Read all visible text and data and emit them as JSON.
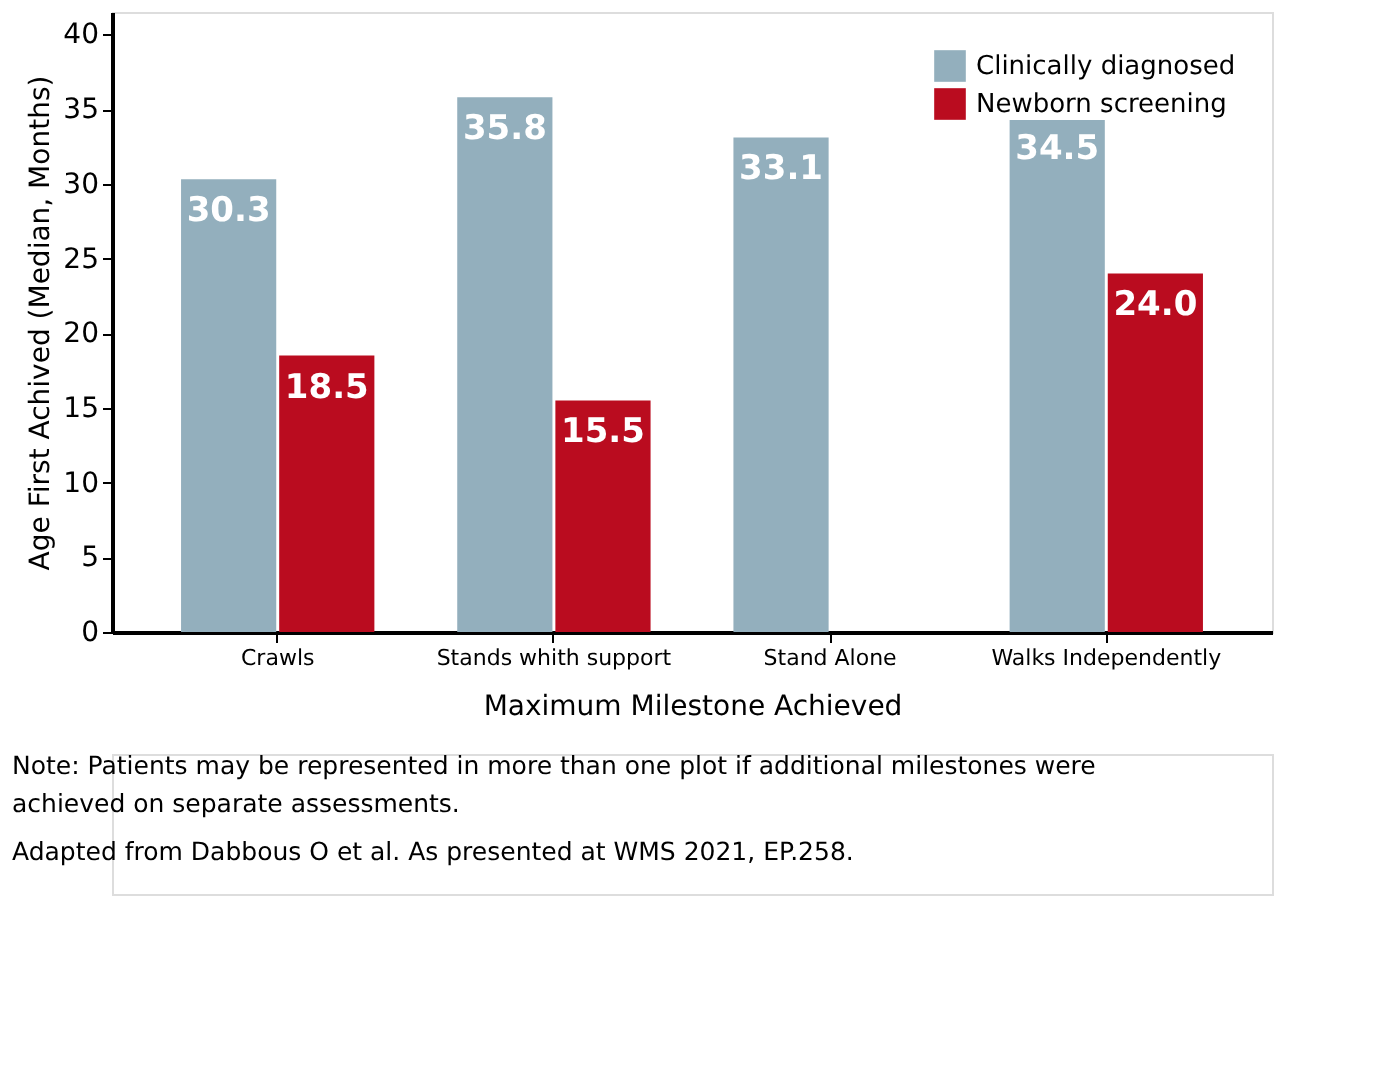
{
  "chart_data": {
    "type": "bar",
    "xlabel": "Maximum Milestone Achieved",
    "ylabel": "Age First Achived (Median, Months)",
    "categories": [
      "Crawls",
      "Stands whith support",
      "Stand Alone",
      "Walks Independently"
    ],
    "series": [
      {
        "name": "Clinically diagnosed",
        "color": "#93afbd",
        "values": [
          30.3,
          35.8,
          33.1,
          34.5
        ],
        "value_labels": [
          "30.3",
          "35.8",
          "33.1",
          "34.5"
        ]
      },
      {
        "name": "Newborn screening",
        "color": "#ba0c1f",
        "values": [
          18.5,
          15.5,
          null,
          24.0
        ],
        "value_labels": [
          "18.5",
          "15.5",
          null,
          "24.0"
        ]
      }
    ],
    "ylim": [
      0,
      41.5
    ],
    "yticks": [
      0,
      5,
      10,
      15,
      20,
      25,
      30,
      35,
      40
    ],
    "grid": false,
    "legend": "top right",
    "annotations": [
      "Note: Patients may be represented in more than one plot if additional milestones were achieved on separate assessments.",
      "Adapted from Dabbous O et al. As presented at WMS 2021, EP.258."
    ]
  }
}
